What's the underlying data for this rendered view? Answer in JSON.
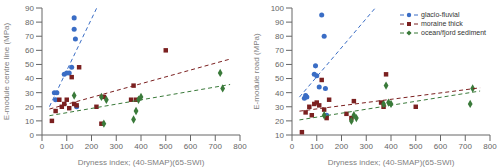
{
  "chart_data": [
    {
      "type": "scatter",
      "xlabel": "Dryness index; (40-SMAP)(65-SWI)",
      "ylabel": "E-module centre line (MPa)",
      "xlim": [
        0,
        800
      ],
      "xticks": [
        0,
        100,
        200,
        300,
        400,
        500,
        600,
        700,
        800
      ],
      "ylim": [
        0,
        90
      ],
      "yticks": [
        0,
        10,
        20,
        30,
        40,
        50,
        60,
        70,
        80,
        90
      ],
      "grid": false,
      "series": [
        {
          "type": "scatter",
          "color": "#3a6dc5",
          "marker": "circle",
          "x": [
            50,
            55,
            60,
            90,
            100,
            110,
            120,
            130,
            130,
            135,
            140
          ],
          "values": [
            30,
            25,
            30,
            43,
            44,
            44,
            48,
            83,
            75,
            68,
            20
          ]
        },
        {
          "type": "scatter",
          "color": "#7b2020",
          "marker": "square",
          "x": [
            40,
            55,
            70,
            80,
            90,
            100,
            110,
            120,
            130,
            140,
            150,
            220,
            240,
            250,
            360,
            370,
            380,
            500
          ],
          "values": [
            10,
            17,
            25,
            20,
            22,
            25,
            19,
            41,
            22,
            21,
            48,
            20,
            8,
            27,
            25,
            35,
            25,
            60
          ]
        },
        {
          "type": "scatter",
          "color": "#3a7a3a",
          "marker": "diamond",
          "x": [
            130,
            240,
            250,
            260,
            370,
            380,
            390,
            400,
            720,
            730
          ],
          "values": [
            28,
            27,
            8,
            25,
            11,
            17,
            25,
            27,
            44,
            33
          ]
        },
        {
          "type": "line",
          "color": "#3a6dc5",
          "line_style": "dashed",
          "x": [
            30,
            221.13
          ],
          "values": [
            20.1,
            90
          ]
        },
        {
          "type": "line",
          "color": "#7b2020",
          "line_style": "dashed",
          "x": [
            30,
            760
          ],
          "values": [
            18.39,
            53.8
          ]
        },
        {
          "type": "line",
          "color": "#3a7a3a",
          "line_style": "dashed",
          "x": [
            30,
            760
          ],
          "values": [
            13.68,
            35.8
          ]
        }
      ]
    },
    {
      "type": "scatter",
      "xlabel": "Dryness index; (40-SMAP)(65-SWI)",
      "ylabel": "E-module road (MPa)",
      "xlim": [
        0,
        800
      ],
      "xticks": [
        0,
        100,
        200,
        300,
        400,
        500,
        600,
        700,
        800
      ],
      "ylim": [
        10,
        100
      ],
      "yticks": [
        10,
        20,
        30,
        40,
        50,
        60,
        70,
        80,
        90,
        100
      ],
      "grid": false,
      "legend": "upper right",
      "series": [
        {
          "type": "scatter",
          "name": "glacio-fluvial",
          "color": "#3a6dc5",
          "marker": "circle",
          "x": [
            50,
            55,
            60,
            90,
            95,
            100,
            110,
            120,
            130,
            135,
            140
          ],
          "values": [
            36,
            38,
            37,
            53,
            59,
            52,
            44,
            95,
            80,
            43,
            24
          ]
        },
        {
          "type": "scatter",
          "name": "moraine thick",
          "color": "#7b2020",
          "marker": "square",
          "x": [
            40,
            55,
            70,
            80,
            90,
            100,
            110,
            120,
            130,
            140,
            150,
            220,
            240,
            250,
            360,
            370,
            380,
            500
          ],
          "values": [
            12,
            26,
            30,
            24,
            32,
            33,
            31,
            49,
            28,
            22,
            35,
            25,
            22,
            34,
            33,
            30,
            53,
            30
          ]
        },
        {
          "type": "scatter",
          "name": "ocean/fjord sediment",
          "color": "#3a7a3a",
          "marker": "diamond",
          "x": [
            130,
            240,
            250,
            260,
            370,
            380,
            390,
            400,
            720,
            730
          ],
          "values": [
            24,
            20,
            24,
            22,
            32,
            45,
            33,
            32,
            32,
            43
          ]
        },
        {
          "type": "line",
          "color": "#3a6dc5",
          "line_style": "dashed",
          "x": [
            30,
            336.35
          ],
          "values": [
            36.85,
            100
          ]
        },
        {
          "type": "line",
          "color": "#7b2020",
          "line_style": "dashed",
          "x": [
            30,
            760
          ],
          "values": [
            26.89,
            43.45
          ]
        },
        {
          "type": "line",
          "color": "#3a7a3a",
          "line_style": "dashed",
          "x": [
            30,
            760
          ],
          "values": [
            20.68,
            41.17
          ]
        }
      ]
    }
  ]
}
